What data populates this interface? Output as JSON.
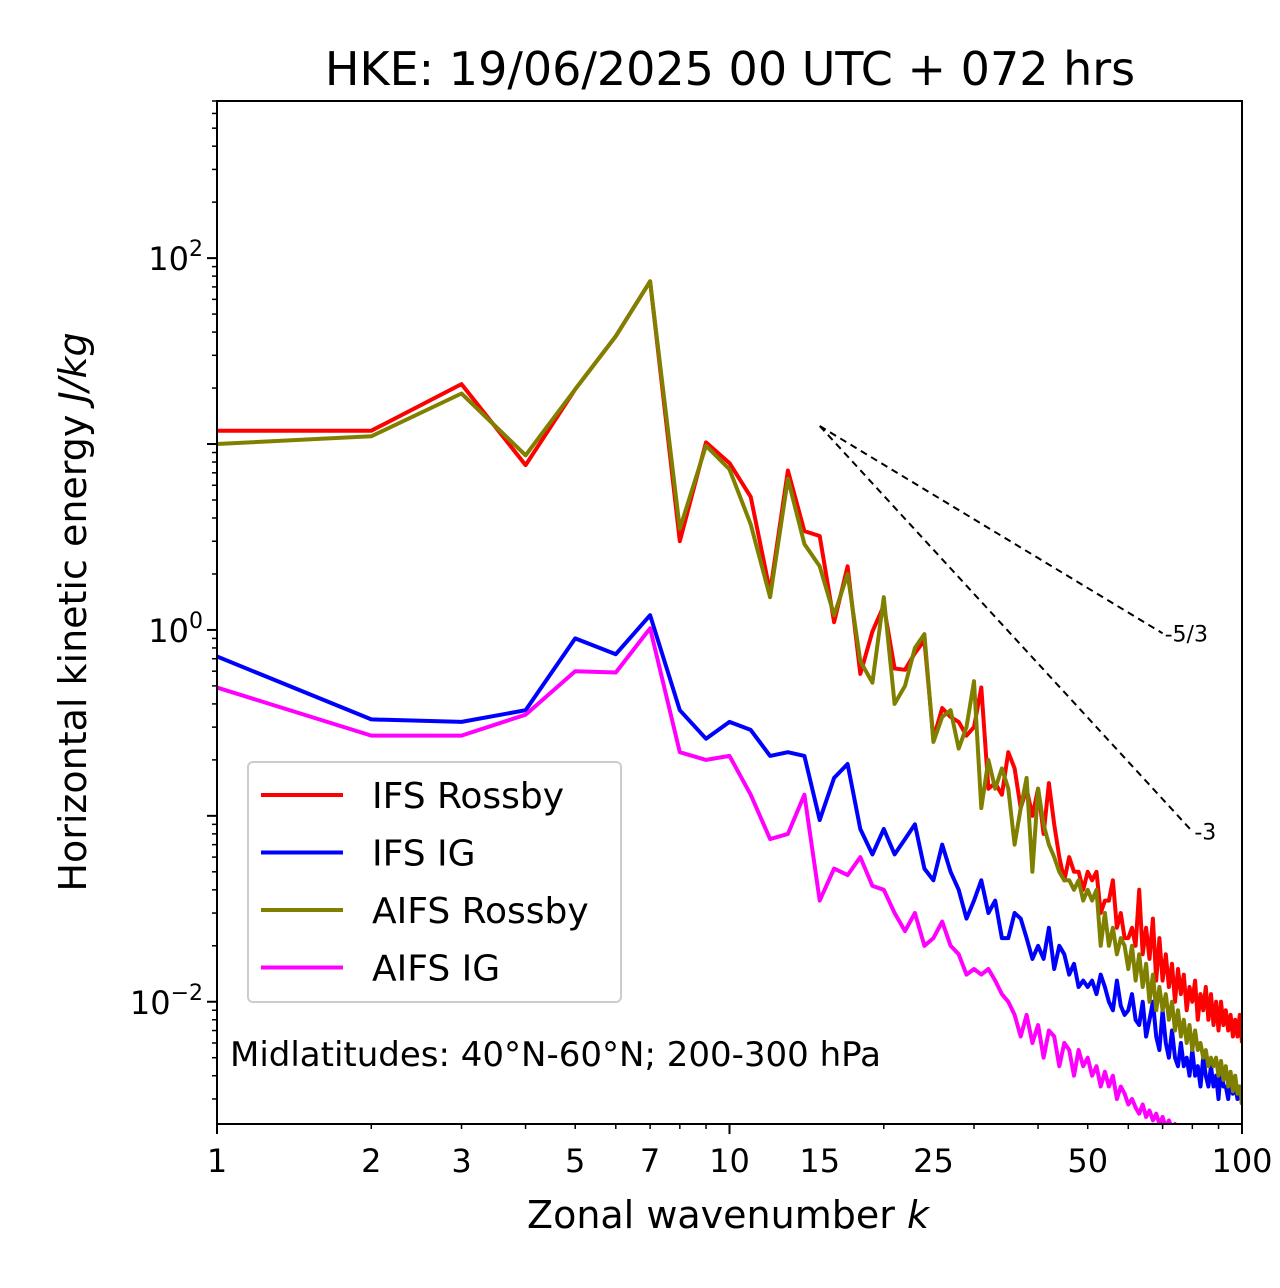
{
  "chart_data": {
    "type": "line",
    "title": "HKE: 19/06/2025 00 UTC + 072 hrs",
    "xlabel": "Zonal wavenumber",
    "xlabel_symbol": "k",
    "ylabel": "Horizontal kinetic energy",
    "ylabel_units": "J/kg",
    "xscale": "log",
    "yscale": "log",
    "xlim": [
      1,
      100
    ],
    "ylim": [
      0.0022,
      700
    ],
    "grid": false,
    "legend_position": "lower-left",
    "x_ticks": [
      "1",
      "2",
      "3",
      "5",
      "7",
      "10",
      "15",
      "25",
      "50",
      "100"
    ],
    "y_ticks": [
      {
        "base": "10",
        "exp": "2"
      },
      {
        "base": "10",
        "exp": "0"
      },
      {
        "base": "10",
        "exp": "−2"
      }
    ],
    "annotation": "Midlatitudes: 40°N-60°N; 200-300 hPa",
    "reference_lines": [
      {
        "label": "-5/3",
        "slope": -1.6667,
        "x": [
          15,
          70
        ],
        "y0": 12.5
      },
      {
        "label": "-3",
        "slope": -3,
        "x": [
          15,
          80
        ],
        "y0": 12.5
      }
    ],
    "series": [
      {
        "name": "IFS Rossby",
        "color": "#ff0000",
        "x": [
          1,
          2,
          3,
          4,
          5,
          6,
          7,
          8,
          9,
          10,
          11,
          12,
          13,
          14,
          15,
          16,
          17,
          18,
          19,
          20,
          21,
          22,
          23,
          24,
          25,
          26,
          27,
          28,
          29,
          30,
          31,
          32,
          33,
          34,
          35,
          36,
          37,
          38,
          39,
          40,
          41,
          42,
          43,
          44,
          45,
          46,
          47,
          48,
          49,
          50,
          51,
          52,
          53,
          54,
          55,
          56,
          57,
          58,
          59,
          60,
          61,
          62,
          63,
          64,
          65,
          66,
          67,
          68,
          69,
          70,
          71,
          72,
          73,
          74,
          75,
          76,
          77,
          78,
          79,
          80,
          81,
          82,
          83,
          84,
          85,
          86,
          87,
          88,
          89,
          90,
          91,
          92,
          93,
          94,
          95,
          96,
          97,
          98,
          99,
          100
        ],
        "y": [
          11.8,
          11.8,
          21.0,
          7.7,
          19.7,
          38.0,
          75.0,
          3.0,
          10.2,
          7.9,
          5.2,
          1.6,
          7.2,
          3.4,
          3.2,
          1.1,
          2.2,
          0.58,
          0.98,
          1.35,
          0.62,
          0.61,
          0.75,
          0.88,
          0.26,
          0.38,
          0.34,
          0.32,
          0.27,
          0.3,
          0.49,
          0.14,
          0.15,
          0.13,
          0.22,
          0.18,
          0.11,
          0.14,
          0.1,
          0.14,
          0.08,
          0.15,
          0.09,
          0.06,
          0.045,
          0.06,
          0.05,
          0.05,
          0.04,
          0.05,
          0.045,
          0.05,
          0.03,
          0.035,
          0.035,
          0.045,
          0.025,
          0.03,
          0.022,
          0.022,
          0.025,
          0.02,
          0.04,
          0.018,
          0.025,
          0.017,
          0.028,
          0.013,
          0.022,
          0.013,
          0.018,
          0.012,
          0.016,
          0.01,
          0.015,
          0.011,
          0.014,
          0.009,
          0.012,
          0.01,
          0.013,
          0.008,
          0.011,
          0.009,
          0.012,
          0.008,
          0.011,
          0.0075,
          0.01,
          0.007,
          0.01,
          0.0075,
          0.009,
          0.007,
          0.0085,
          0.0065,
          0.008,
          0.0065,
          0.0085,
          0.006
        ]
      },
      {
        "name": "IFS IG",
        "color": "#0000ff",
        "x": [
          1,
          2,
          3,
          4,
          5,
          6,
          7,
          8,
          9,
          10,
          11,
          12,
          13,
          14,
          15,
          16,
          17,
          18,
          19,
          20,
          21,
          22,
          23,
          24,
          25,
          26,
          27,
          28,
          29,
          30,
          31,
          32,
          33,
          34,
          35,
          36,
          37,
          38,
          39,
          40,
          41,
          42,
          43,
          44,
          45,
          46,
          47,
          48,
          49,
          50,
          51,
          52,
          53,
          54,
          55,
          56,
          57,
          58,
          59,
          60,
          61,
          62,
          63,
          64,
          65,
          66,
          67,
          68,
          69,
          70,
          71,
          72,
          73,
          74,
          75,
          76,
          77,
          78,
          79,
          80,
          81,
          82,
          83,
          84,
          85,
          86,
          87,
          88,
          89,
          90,
          91,
          92,
          93,
          94,
          95,
          96,
          97,
          98,
          99,
          100
        ],
        "y": [
          0.72,
          0.33,
          0.32,
          0.37,
          0.9,
          0.74,
          1.2,
          0.37,
          0.26,
          0.32,
          0.29,
          0.21,
          0.22,
          0.21,
          0.095,
          0.16,
          0.19,
          0.085,
          0.062,
          0.085,
          0.062,
          0.075,
          0.09,
          0.052,
          0.045,
          0.07,
          0.05,
          0.04,
          0.028,
          0.035,
          0.045,
          0.03,
          0.035,
          0.022,
          0.022,
          0.03,
          0.028,
          0.022,
          0.017,
          0.02,
          0.017,
          0.025,
          0.015,
          0.02,
          0.018,
          0.014,
          0.016,
          0.012,
          0.013,
          0.012,
          0.013,
          0.011,
          0.014,
          0.012,
          0.01,
          0.009,
          0.013,
          0.0095,
          0.0085,
          0.009,
          0.011,
          0.008,
          0.0075,
          0.01,
          0.0065,
          0.008,
          0.01,
          0.0065,
          0.0055,
          0.009,
          0.006,
          0.005,
          0.007,
          0.005,
          0.0045,
          0.006,
          0.0045,
          0.005,
          0.004,
          0.0055,
          0.004,
          0.0045,
          0.0035,
          0.005,
          0.004,
          0.0035,
          0.0045,
          0.0035,
          0.004,
          0.003,
          0.0045,
          0.0035,
          0.0035,
          0.003,
          0.004,
          0.0032,
          0.0035,
          0.003,
          0.0035,
          0.0028
        ]
      },
      {
        "name": "AIFS Rossby",
        "color": "#808000",
        "x": [
          1,
          2,
          3,
          4,
          5,
          6,
          7,
          8,
          9,
          10,
          11,
          12,
          13,
          14,
          15,
          16,
          17,
          18,
          19,
          20,
          21,
          22,
          23,
          24,
          25,
          26,
          27,
          28,
          29,
          30,
          31,
          32,
          33,
          34,
          35,
          36,
          37,
          38,
          39,
          40,
          41,
          42,
          43,
          44,
          45,
          46,
          47,
          48,
          49,
          50,
          51,
          52,
          53,
          54,
          55,
          56,
          57,
          58,
          59,
          60,
          61,
          62,
          63,
          64,
          65,
          66,
          67,
          68,
          69,
          70,
          71,
          72,
          73,
          74,
          75,
          76,
          77,
          78,
          79,
          80,
          81,
          82,
          83,
          84,
          85,
          86,
          87,
          88,
          89,
          90,
          91,
          92,
          93,
          94,
          95,
          96,
          97,
          98,
          99,
          100
        ],
        "y": [
          10.0,
          11.0,
          18.7,
          8.7,
          19.7,
          38.0,
          75.0,
          3.5,
          9.8,
          7.3,
          3.7,
          1.5,
          6.5,
          2.9,
          2.2,
          1.2,
          2.0,
          0.68,
          0.52,
          1.5,
          0.4,
          0.5,
          0.8,
          0.95,
          0.25,
          0.34,
          0.37,
          0.23,
          0.3,
          0.53,
          0.11,
          0.2,
          0.14,
          0.18,
          0.14,
          0.07,
          0.11,
          0.16,
          0.05,
          0.14,
          0.09,
          0.07,
          0.06,
          0.05,
          0.045,
          0.045,
          0.04,
          0.045,
          0.035,
          0.04,
          0.035,
          0.04,
          0.02,
          0.03,
          0.02,
          0.025,
          0.018,
          0.022,
          0.02,
          0.015,
          0.02,
          0.013,
          0.018,
          0.012,
          0.016,
          0.01,
          0.014,
          0.009,
          0.012,
          0.009,
          0.011,
          0.008,
          0.01,
          0.007,
          0.009,
          0.0065,
          0.008,
          0.006,
          0.0075,
          0.0055,
          0.007,
          0.0055,
          0.006,
          0.005,
          0.0055,
          0.0045,
          0.005,
          0.0045,
          0.005,
          0.004,
          0.0048,
          0.0038,
          0.0045,
          0.0035,
          0.0042,
          0.0033,
          0.004,
          0.0032,
          0.0035,
          0.0028
        ]
      },
      {
        "name": "AIFS IG",
        "color": "#ff00ff",
        "x": [
          1,
          2,
          3,
          4,
          5,
          6,
          7,
          8,
          9,
          10,
          11,
          12,
          13,
          14,
          15,
          16,
          17,
          18,
          19,
          20,
          21,
          22,
          23,
          24,
          25,
          26,
          27,
          28,
          29,
          30,
          31,
          32,
          33,
          34,
          35,
          36,
          37,
          38,
          39,
          40,
          41,
          42,
          43,
          44,
          45,
          46,
          47,
          48,
          49,
          50,
          51,
          52,
          53,
          54,
          55,
          56,
          57,
          58,
          59,
          60,
          61,
          62,
          63,
          64,
          65,
          66,
          67,
          68,
          69,
          70,
          71,
          72,
          73,
          74,
          75,
          76,
          77,
          78,
          79,
          80
        ],
        "y": [
          0.49,
          0.27,
          0.27,
          0.35,
          0.6,
          0.59,
          1.02,
          0.22,
          0.2,
          0.21,
          0.13,
          0.075,
          0.08,
          0.13,
          0.035,
          0.052,
          0.048,
          0.06,
          0.042,
          0.04,
          0.03,
          0.024,
          0.03,
          0.02,
          0.022,
          0.027,
          0.02,
          0.018,
          0.014,
          0.015,
          0.014,
          0.015,
          0.013,
          0.011,
          0.01,
          0.0085,
          0.0065,
          0.0085,
          0.006,
          0.0075,
          0.005,
          0.007,
          0.0065,
          0.0045,
          0.006,
          0.0055,
          0.004,
          0.0055,
          0.0045,
          0.005,
          0.004,
          0.0045,
          0.0035,
          0.0042,
          0.0035,
          0.004,
          0.003,
          0.0035,
          0.0032,
          0.0028,
          0.003,
          0.0027,
          0.0025,
          0.0028,
          0.0024,
          0.0026,
          0.0023,
          0.0025,
          0.0022,
          0.0024,
          0.0021,
          0.0023,
          0.0021,
          0.0022,
          0.002,
          0.0021,
          0.0019,
          0.002,
          0.0019,
          0.002
        ]
      }
    ]
  }
}
